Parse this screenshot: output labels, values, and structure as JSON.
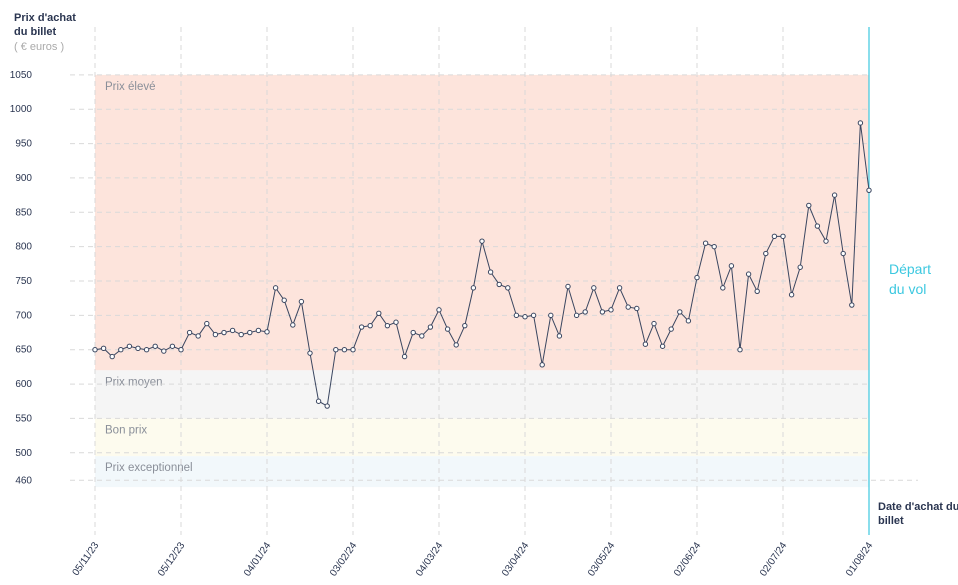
{
  "chart_data": {
    "type": "line",
    "y_label": "Prix d'achat du billet",
    "y_unit": "( € euros )",
    "x_label": "Date d'achat du billet",
    "annotation": "Départ du vol",
    "ylim": [
      440,
      1060
    ],
    "yticks": [
      1050,
      1000,
      950,
      900,
      850,
      800,
      750,
      700,
      650,
      600,
      550,
      500,
      460
    ],
    "grid": true,
    "bands": [
      {
        "label": "Prix élevé",
        "from": 620,
        "to": 1050,
        "color": "#fde4dc"
      },
      {
        "label": "Prix moyen",
        "from": 550,
        "to": 620,
        "color": "#f5f5f5"
      },
      {
        "label": "Bon prix",
        "from": 495,
        "to": 550,
        "color": "#fdfbee"
      },
      {
        "label": "Prix exceptionnel",
        "from": 450,
        "to": 495,
        "color": "#f2f8fb"
      }
    ],
    "categories": [
      "05/11/23",
      null,
      null,
      null,
      null,
      null,
      null,
      null,
      null,
      null,
      "05/12/23",
      null,
      null,
      null,
      null,
      null,
      null,
      null,
      null,
      null,
      "04/01/24",
      null,
      null,
      null,
      null,
      null,
      null,
      null,
      null,
      null,
      "03/02/24",
      null,
      null,
      null,
      null,
      null,
      null,
      null,
      null,
      null,
      "04/03/24",
      null,
      null,
      null,
      null,
      null,
      null,
      null,
      null,
      null,
      "03/04/24",
      null,
      null,
      null,
      null,
      null,
      null,
      null,
      null,
      null,
      "03/05/24",
      null,
      null,
      null,
      null,
      null,
      null,
      null,
      null,
      null,
      "02/06/24",
      null,
      null,
      null,
      null,
      null,
      null,
      null,
      null,
      null,
      "02/07/24",
      null,
      null,
      null,
      null,
      null,
      null,
      null,
      null,
      null,
      "01/08/24"
    ],
    "series": [
      {
        "color": "#3a4660",
        "values": [
          650,
          652,
          640,
          650,
          655,
          652,
          650,
          655,
          648,
          655,
          650,
          675,
          670,
          688,
          672,
          675,
          678,
          672,
          675,
          678,
          676,
          740,
          722,
          686,
          720,
          645,
          575,
          568,
          650,
          650,
          650,
          683,
          685,
          703,
          685,
          690,
          640,
          675,
          670,
          683,
          708,
          680,
          657,
          685,
          740,
          808,
          763,
          745,
          740,
          700,
          698,
          700,
          628,
          700,
          670,
          742,
          700,
          705,
          740,
          705,
          708,
          740,
          712,
          710,
          658,
          688,
          655,
          680,
          705,
          692,
          755,
          805,
          800,
          740,
          772,
          650,
          760,
          735,
          790,
          815,
          815,
          730,
          770,
          860,
          830,
          808,
          875,
          790,
          715,
          980,
          882
        ]
      }
    ],
    "annotation_color": "#3cc8e0"
  }
}
